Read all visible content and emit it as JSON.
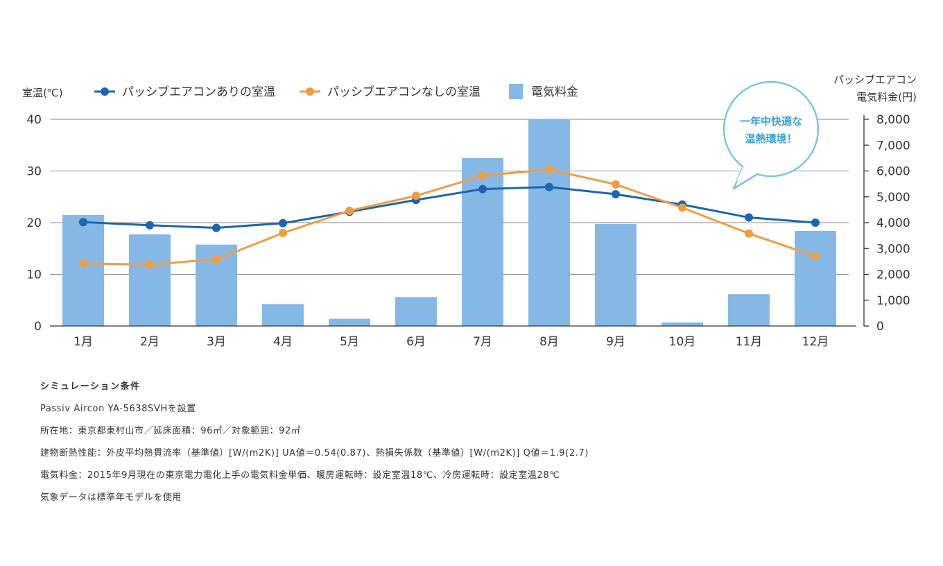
{
  "chart_data": {
    "type": "bar+line",
    "categories": [
      "1月",
      "2月",
      "3月",
      "4月",
      "5月",
      "6月",
      "7月",
      "8月",
      "9月",
      "10月",
      "11月",
      "12月"
    ],
    "bars": {
      "name": "電気料金",
      "color": "#86b8e6",
      "axis": "right",
      "values": [
        4300,
        3550,
        3150,
        850,
        280,
        1120,
        6500,
        8020,
        3950,
        140,
        1230,
        3680
      ]
    },
    "series": [
      {
        "name": "パッシブエアコンありの室温",
        "color": "#1d65ac",
        "axis": "left",
        "values": [
          20.1,
          19.5,
          19.0,
          19.9,
          22.1,
          24.4,
          26.5,
          26.9,
          25.5,
          23.5,
          21.0,
          20.0
        ]
      },
      {
        "name": "パッシブエアコンなしの室温",
        "color": "#ed9d43",
        "axis": "left",
        "values": [
          12.1,
          11.9,
          12.9,
          18.0,
          22.3,
          25.2,
          29.1,
          30.3,
          27.4,
          22.9,
          17.9,
          13.5
        ]
      }
    ],
    "left_axis": {
      "label": "室温(℃)",
      "ylim": [
        0,
        40
      ],
      "ticks": [
        0,
        10,
        20,
        30,
        40
      ]
    },
    "right_axis": {
      "label_lines": [
        "パッシブエアコン",
        "電気料金(円)"
      ],
      "ylim": [
        0,
        8000
      ],
      "ticks": [
        "0",
        "1,000",
        "2,000",
        "3,000",
        "4,000",
        "5,000",
        "6,000",
        "7,000",
        "8,000"
      ]
    },
    "legend": [
      {
        "label": "パッシブエアコンありの室温",
        "kind": "line",
        "color": "#1d65ac"
      },
      {
        "label": "パッシブエアコンなしの室温",
        "kind": "line",
        "color": "#ed9d43"
      },
      {
        "label": "電気料金",
        "kind": "bar",
        "color": "#86b8e6"
      }
    ],
    "annotation": {
      "lines": [
        "一年中快適な",
        "温熱環境！"
      ],
      "color": "#3aa3d9"
    },
    "grid": true
  },
  "notes": {
    "title": "シミュレーション条件",
    "lines": [
      "Passiv Aircon YA-5638SVHを設置",
      "所在地：東京都東村山市／延床面積：96㎡／対象範囲：92㎡",
      "建物断熱性能：外皮平均熱貫流率（基準値）[W/(m2K)] UA値＝0.54(0.87)、熱損失係数（基準値）[W/(m2K)] Q値＝1.9(2.7)",
      "電気料金：2015年9月現在の東京電力電化上手の電気料金単価、暖房運転時：設定室温18℃、冷房運転時：設定室温28℃",
      "気象データは標準年モデルを使用"
    ]
  }
}
